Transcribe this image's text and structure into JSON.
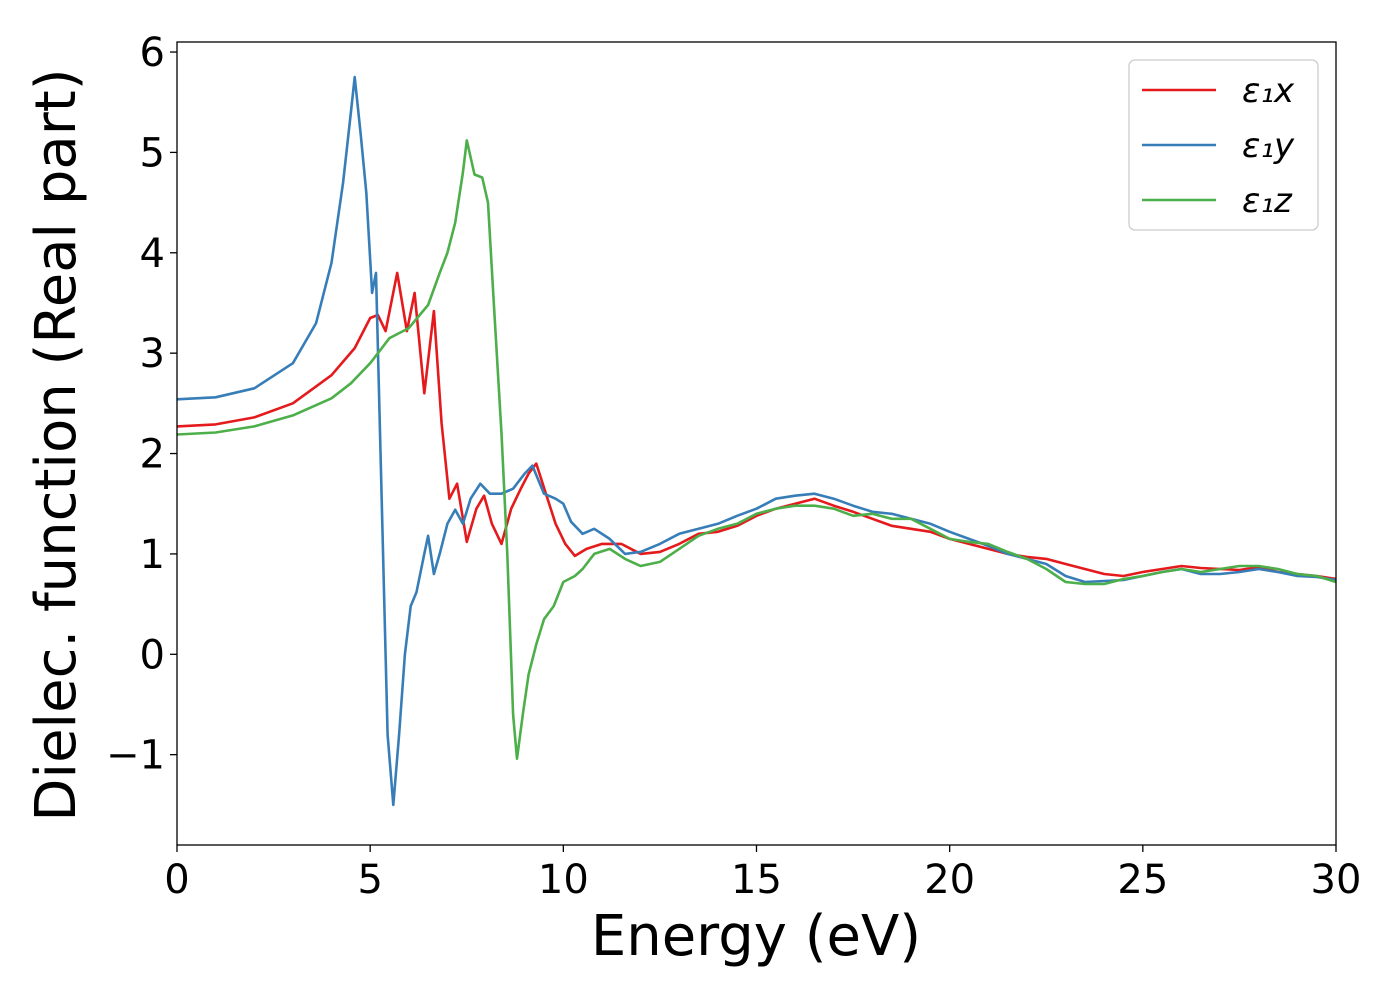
{
  "chart_data": {
    "type": "line",
    "title": "",
    "xlabel": "Energy (eV)",
    "ylabel": "Dielec. function (Real part)",
    "xlim": [
      0,
      30
    ],
    "ylim": [
      -1.9,
      6.1
    ],
    "xticks": [
      0,
      5,
      10,
      15,
      20,
      25,
      30
    ],
    "xtick_labels": [
      "0",
      "5",
      "10",
      "15",
      "20",
      "25",
      "30"
    ],
    "yticks": [
      -1,
      0,
      1,
      2,
      3,
      4,
      5,
      6
    ],
    "ytick_labels": [
      "−1",
      "0",
      "1",
      "2",
      "3",
      "4",
      "5",
      "6"
    ],
    "grid": false,
    "legend_position": "top-right",
    "series": [
      {
        "name": "ε₁x",
        "color": "#e41a1c",
        "points": [
          [
            0,
            2.27
          ],
          [
            1,
            2.29
          ],
          [
            2,
            2.36
          ],
          [
            3,
            2.5
          ],
          [
            4,
            2.78
          ],
          [
            4.6,
            3.05
          ],
          [
            5.0,
            3.35
          ],
          [
            5.2,
            3.38
          ],
          [
            5.4,
            3.22
          ],
          [
            5.7,
            3.8
          ],
          [
            5.95,
            3.22
          ],
          [
            6.15,
            3.6
          ],
          [
            6.4,
            2.6
          ],
          [
            6.65,
            3.42
          ],
          [
            6.85,
            2.3
          ],
          [
            7.05,
            1.55
          ],
          [
            7.25,
            1.7
          ],
          [
            7.5,
            1.12
          ],
          [
            7.75,
            1.45
          ],
          [
            7.95,
            1.58
          ],
          [
            8.15,
            1.3
          ],
          [
            8.4,
            1.1
          ],
          [
            8.65,
            1.45
          ],
          [
            8.9,
            1.65
          ],
          [
            9.1,
            1.8
          ],
          [
            9.3,
            1.9
          ],
          [
            9.55,
            1.6
          ],
          [
            9.8,
            1.3
          ],
          [
            10.05,
            1.1
          ],
          [
            10.3,
            0.98
          ],
          [
            10.6,
            1.05
          ],
          [
            11,
            1.1
          ],
          [
            11.5,
            1.1
          ],
          [
            12,
            1.0
          ],
          [
            12.5,
            1.02
          ],
          [
            13,
            1.1
          ],
          [
            13.5,
            1.2
          ],
          [
            14,
            1.22
          ],
          [
            14.5,
            1.28
          ],
          [
            15,
            1.38
          ],
          [
            15.5,
            1.45
          ],
          [
            16,
            1.5
          ],
          [
            16.5,
            1.55
          ],
          [
            17,
            1.48
          ],
          [
            17.5,
            1.42
          ],
          [
            18,
            1.35
          ],
          [
            18.5,
            1.28
          ],
          [
            19,
            1.25
          ],
          [
            19.5,
            1.22
          ],
          [
            20,
            1.15
          ],
          [
            20.5,
            1.1
          ],
          [
            21,
            1.05
          ],
          [
            21.5,
            1.0
          ],
          [
            22,
            0.97
          ],
          [
            22.5,
            0.95
          ],
          [
            23,
            0.9
          ],
          [
            23.5,
            0.85
          ],
          [
            24,
            0.8
          ],
          [
            24.5,
            0.78
          ],
          [
            25,
            0.82
          ],
          [
            25.5,
            0.85
          ],
          [
            26,
            0.88
          ],
          [
            26.5,
            0.86
          ],
          [
            27,
            0.85
          ],
          [
            27.5,
            0.84
          ],
          [
            28,
            0.87
          ],
          [
            28.5,
            0.82
          ],
          [
            29,
            0.8
          ],
          [
            29.5,
            0.78
          ],
          [
            30,
            0.75
          ]
        ]
      },
      {
        "name": "ε₁y",
        "color": "#377eb8",
        "points": [
          [
            0,
            2.54
          ],
          [
            1,
            2.56
          ],
          [
            2,
            2.65
          ],
          [
            3,
            2.9
          ],
          [
            3.6,
            3.3
          ],
          [
            4.0,
            3.9
          ],
          [
            4.3,
            4.7
          ],
          [
            4.5,
            5.4
          ],
          [
            4.6,
            5.75
          ],
          [
            4.75,
            5.2
          ],
          [
            4.9,
            4.6
          ],
          [
            5.05,
            3.6
          ],
          [
            5.15,
            3.8
          ],
          [
            5.3,
            1.5
          ],
          [
            5.45,
            -0.8
          ],
          [
            5.6,
            -1.5
          ],
          [
            5.75,
            -0.8
          ],
          [
            5.9,
            0.0
          ],
          [
            6.05,
            0.48
          ],
          [
            6.2,
            0.62
          ],
          [
            6.4,
            1.0
          ],
          [
            6.5,
            1.18
          ],
          [
            6.65,
            0.8
          ],
          [
            6.8,
            1.0
          ],
          [
            7.0,
            1.3
          ],
          [
            7.2,
            1.44
          ],
          [
            7.4,
            1.3
          ],
          [
            7.6,
            1.55
          ],
          [
            7.85,
            1.7
          ],
          [
            8.1,
            1.6
          ],
          [
            8.4,
            1.6
          ],
          [
            8.7,
            1.65
          ],
          [
            9.0,
            1.8
          ],
          [
            9.2,
            1.88
          ],
          [
            9.5,
            1.6
          ],
          [
            9.8,
            1.55
          ],
          [
            10.0,
            1.5
          ],
          [
            10.2,
            1.32
          ],
          [
            10.5,
            1.2
          ],
          [
            10.8,
            1.25
          ],
          [
            11.2,
            1.15
          ],
          [
            11.6,
            1.0
          ],
          [
            12,
            1.02
          ],
          [
            12.5,
            1.1
          ],
          [
            13,
            1.2
          ],
          [
            13.5,
            1.25
          ],
          [
            14,
            1.3
          ],
          [
            14.5,
            1.38
          ],
          [
            15,
            1.45
          ],
          [
            15.5,
            1.55
          ],
          [
            16,
            1.58
          ],
          [
            16.5,
            1.6
          ],
          [
            17,
            1.55
          ],
          [
            17.5,
            1.48
          ],
          [
            18,
            1.42
          ],
          [
            18.5,
            1.4
          ],
          [
            19,
            1.35
          ],
          [
            19.5,
            1.3
          ],
          [
            20,
            1.22
          ],
          [
            20.5,
            1.15
          ],
          [
            21,
            1.08
          ],
          [
            21.5,
            1.0
          ],
          [
            22,
            0.95
          ],
          [
            22.5,
            0.9
          ],
          [
            23,
            0.78
          ],
          [
            23.5,
            0.72
          ],
          [
            24,
            0.73
          ],
          [
            24.5,
            0.74
          ],
          [
            25,
            0.78
          ],
          [
            25.5,
            0.82
          ],
          [
            26,
            0.85
          ],
          [
            26.5,
            0.8
          ],
          [
            27,
            0.8
          ],
          [
            27.5,
            0.82
          ],
          [
            28,
            0.85
          ],
          [
            28.5,
            0.82
          ],
          [
            29,
            0.78
          ],
          [
            29.5,
            0.77
          ],
          [
            30,
            0.74
          ]
        ]
      },
      {
        "name": "ε₁z",
        "color": "#4daf4a",
        "points": [
          [
            0,
            2.19
          ],
          [
            1,
            2.21
          ],
          [
            2,
            2.27
          ],
          [
            3,
            2.38
          ],
          [
            4,
            2.55
          ],
          [
            4.5,
            2.7
          ],
          [
            5.0,
            2.9
          ],
          [
            5.5,
            3.15
          ],
          [
            6.0,
            3.25
          ],
          [
            6.5,
            3.48
          ],
          [
            6.8,
            3.8
          ],
          [
            7.0,
            4.0
          ],
          [
            7.2,
            4.3
          ],
          [
            7.4,
            4.8
          ],
          [
            7.5,
            5.12
          ],
          [
            7.7,
            4.78
          ],
          [
            7.9,
            4.75
          ],
          [
            8.05,
            4.5
          ],
          [
            8.2,
            3.5
          ],
          [
            8.4,
            2.2
          ],
          [
            8.55,
            1.0
          ],
          [
            8.7,
            -0.6
          ],
          [
            8.8,
            -1.04
          ],
          [
            8.95,
            -0.6
          ],
          [
            9.1,
            -0.2
          ],
          [
            9.3,
            0.1
          ],
          [
            9.5,
            0.35
          ],
          [
            9.75,
            0.48
          ],
          [
            10.0,
            0.72
          ],
          [
            10.3,
            0.78
          ],
          [
            10.5,
            0.85
          ],
          [
            10.8,
            1.0
          ],
          [
            11.2,
            1.05
          ],
          [
            11.6,
            0.95
          ],
          [
            12,
            0.88
          ],
          [
            12.5,
            0.92
          ],
          [
            13,
            1.05
          ],
          [
            13.5,
            1.18
          ],
          [
            14,
            1.25
          ],
          [
            14.5,
            1.3
          ],
          [
            15,
            1.4
          ],
          [
            15.5,
            1.45
          ],
          [
            16,
            1.48
          ],
          [
            16.5,
            1.48
          ],
          [
            17,
            1.45
          ],
          [
            17.5,
            1.38
          ],
          [
            18,
            1.4
          ],
          [
            18.5,
            1.35
          ],
          [
            19,
            1.35
          ],
          [
            19.5,
            1.25
          ],
          [
            20,
            1.15
          ],
          [
            20.5,
            1.12
          ],
          [
            21,
            1.1
          ],
          [
            21.5,
            1.02
          ],
          [
            22,
            0.95
          ],
          [
            22.5,
            0.85
          ],
          [
            23,
            0.72
          ],
          [
            23.5,
            0.7
          ],
          [
            24,
            0.7
          ],
          [
            24.5,
            0.75
          ],
          [
            25,
            0.78
          ],
          [
            25.5,
            0.82
          ],
          [
            26,
            0.85
          ],
          [
            26.5,
            0.82
          ],
          [
            27,
            0.85
          ],
          [
            27.5,
            0.88
          ],
          [
            28,
            0.88
          ],
          [
            28.5,
            0.85
          ],
          [
            29,
            0.8
          ],
          [
            29.5,
            0.78
          ],
          [
            30,
            0.72
          ]
        ]
      }
    ]
  }
}
